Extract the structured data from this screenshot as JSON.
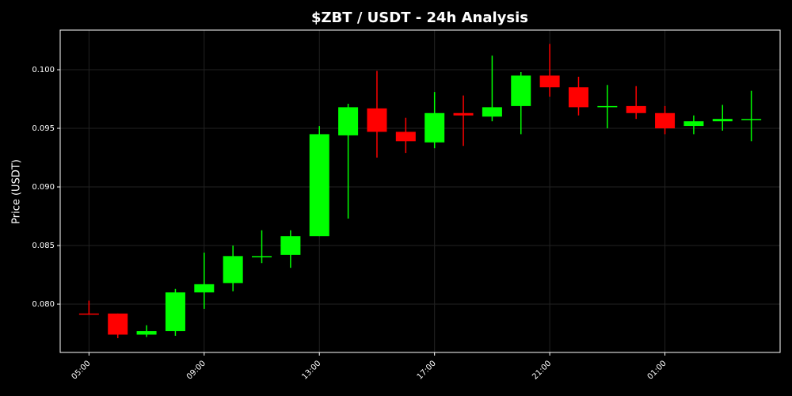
{
  "chart_data": {
    "type": "candlestick",
    "title": "$ZBT / USDT - 24h Analysis",
    "y_label": "Price (USDT)",
    "categories": [
      "05:00",
      null,
      null,
      null,
      "09:00",
      null,
      null,
      null,
      "13:00",
      null,
      null,
      null,
      "17:00",
      null,
      null,
      null,
      "21:00",
      null,
      null,
      null,
      "01:00",
      null,
      null,
      null
    ],
    "open": [
      0.0792,
      0.0792,
      0.0774,
      0.0777,
      0.081,
      0.0818,
      0.084,
      0.0842,
      0.0858,
      0.0944,
      0.0967,
      0.0947,
      0.0938,
      0.0963,
      0.096,
      0.0969,
      0.0995,
      0.0985,
      0.0968,
      0.0969,
      0.0963,
      0.0952,
      0.0956,
      0.0958
    ],
    "high": [
      0.0803,
      0.0792,
      0.0782,
      0.0813,
      0.0844,
      0.085,
      0.0863,
      0.0863,
      0.0952,
      0.0971,
      0.0999,
      0.0959,
      0.0981,
      0.0978,
      0.1012,
      0.0998,
      0.1022,
      0.0994,
      0.0987,
      0.0986,
      0.0969,
      0.0961,
      0.097,
      0.0982
    ],
    "low": [
      0.0791,
      0.0771,
      0.0772,
      0.0773,
      0.0796,
      0.0811,
      0.0835,
      0.0831,
      0.0858,
      0.0873,
      0.0925,
      0.0929,
      0.0933,
      0.0935,
      0.0956,
      0.0945,
      0.0977,
      0.0961,
      0.095,
      0.0958,
      0.0945,
      0.0945,
      0.0948,
      0.0939
    ],
    "close": [
      0.0791,
      0.0774,
      0.0777,
      0.081,
      0.0817,
      0.0841,
      0.0841,
      0.0858,
      0.0945,
      0.0968,
      0.0947,
      0.0939,
      0.0963,
      0.0961,
      0.0968,
      0.0995,
      0.0985,
      0.0968,
      0.0969,
      0.0963,
      0.095,
      0.0956,
      0.0958,
      0.0958
    ],
    "up_color": "#00ff00",
    "down_color": "#ff0000",
    "ylim": [
      0.07588,
      0.10338
    ],
    "yticks": [
      {
        "value": 0.08,
        "label": "0.080"
      },
      0.085,
      {
        "value": 0.09,
        "label": "0.090"
      },
      0.095,
      {
        "value": 0.1,
        "label": "0.100"
      }
    ],
    "grid": true
  }
}
